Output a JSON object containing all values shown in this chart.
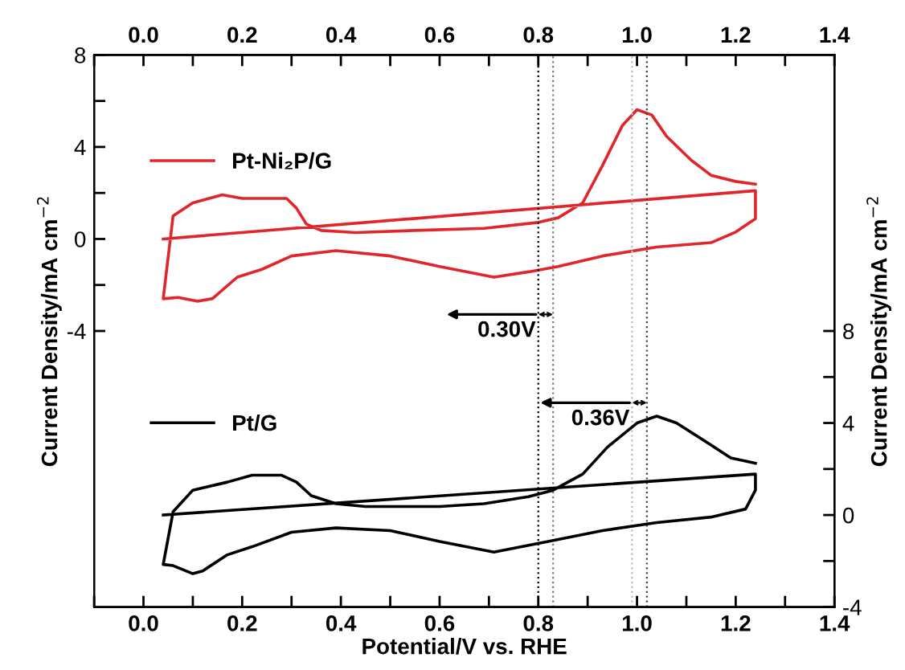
{
  "chart_data": {
    "type": "line",
    "xlabel": "Potential/V vs. RHE",
    "ylabel": "Current Density/mA cm$^{−2}$",
    "y2label": "Current Density/mA cm$^{−2}$",
    "xlim": [
      -0.1,
      1.4
    ],
    "xticks": [
      {
        "value": -0.1,
        "label": null
      },
      "0.0",
      {
        "value": 0.1,
        "label": null
      },
      {
        "value": 0.2,
        "label": "0.2"
      },
      {
        "value": 0.3,
        "label": null
      },
      {
        "value": 0.4,
        "label": "0.4"
      },
      {
        "value": 0.5,
        "label": null
      },
      {
        "value": 0.6,
        "label": "0.6"
      },
      {
        "value": 0.7,
        "label": null
      },
      {
        "value": 0.8,
        "label": "0.8"
      },
      {
        "value": 0.9,
        "label": null
      },
      {
        "value": 1.0,
        "label": "1.0"
      },
      {
        "value": 1.1,
        "label": null
      },
      {
        "value": 1.2,
        "label": "1.2"
      },
      {
        "value": 1.3,
        "label": null
      },
      {
        "value": 1.4,
        "label": "1.4"
      }
    ],
    "x2lim": [
      -0.1,
      1.4
    ],
    "x2ticks": [
      {
        "value": -0.1,
        "label": null
      },
      {
        "value": 0.0,
        "label": "0.0"
      },
      {
        "value": 0.1,
        "label": null
      },
      {
        "value": 0.2,
        "label": "0.2"
      },
      {
        "value": 0.3,
        "label": null
      },
      {
        "value": 0.4,
        "label": "0.4"
      },
      {
        "value": 0.5,
        "label": null
      },
      {
        "value": 0.6,
        "label": "0.6"
      },
      {
        "value": 0.7,
        "label": null
      },
      {
        "value": 0.8,
        "label": "0.8"
      },
      {
        "value": 0.9,
        "label": null
      },
      {
        "value": 1.0,
        "label": "1.0"
      },
      {
        "value": 1.1,
        "label": null
      },
      {
        "value": 1.2,
        "label": "1.2"
      },
      {
        "value": 1.3,
        "label": null
      },
      {
        "value": 1.4,
        "label": "1.4"
      }
    ],
    "ylim": [
      -16,
      8
    ],
    "yticks": [
      -4,
      {
        "value": -2,
        "label": null
      },
      0,
      {
        "value": 2,
        "label": null
      },
      4,
      {
        "value": 6,
        "label": null
      },
      8
    ],
    "y2lim": [
      -4,
      20
    ],
    "y2ticks": [
      -4,
      {
        "value": -2,
        "label": null
      },
      0,
      {
        "value": 2,
        "label": null
      },
      4,
      {
        "value": 6,
        "label": null
      },
      8
    ],
    "grid": false,
    "legend": "left",
    "line_style": "solid",
    "marker": "none",
    "series": [
      {
        "name": "Pt-Ni₂P/G",
        "color": "#e0262b",
        "axis": "y",
        "x": [
          0.04,
          1.24,
          1.24,
          1.24,
          1.2,
          1.15,
          1.04,
          0.93,
          0.84,
          0.78,
          0.71,
          0.6,
          0.5,
          0.39,
          0.3,
          0.24,
          0.19,
          0.14,
          0.11,
          0.07,
          0.04,
          0.06,
          0.1,
          0.16,
          0.2,
          0.29,
          0.31,
          0.33,
          0.36,
          0.43,
          0.55,
          0.69,
          0.8,
          0.84,
          0.89,
          0.93,
          0.97,
          1.0,
          1.03,
          1.06,
          1.11,
          1.15,
          1.2,
          1.24
        ],
        "values": [
          0.0,
          2.1,
          1.57,
          0.88,
          0.3,
          -0.16,
          -0.35,
          -0.74,
          -1.2,
          -1.43,
          -1.66,
          -1.2,
          -0.74,
          -0.51,
          -0.74,
          -1.32,
          -1.66,
          -2.59,
          -2.71,
          -2.54,
          -2.6,
          1.0,
          1.57,
          1.92,
          1.76,
          1.76,
          1.34,
          0.65,
          0.37,
          0.28,
          0.37,
          0.46,
          0.72,
          0.92,
          1.57,
          3.19,
          4.92,
          5.62,
          5.39,
          4.46,
          3.42,
          2.77,
          2.5,
          2.38
        ]
      },
      {
        "name": "Pt/G",
        "color": "#000000",
        "axis": "y2",
        "x": [
          0.04,
          1.24,
          1.24,
          1.22,
          1.15,
          1.04,
          0.93,
          0.82,
          0.71,
          0.6,
          0.5,
          0.39,
          0.3,
          0.22,
          0.17,
          0.12,
          0.1,
          0.06,
          0.04,
          0.06,
          0.1,
          0.17,
          0.22,
          0.28,
          0.31,
          0.34,
          0.39,
          0.45,
          0.6,
          0.69,
          0.78,
          0.83,
          0.89,
          0.94,
          1.0,
          1.04,
          1.08,
          1.14,
          1.19,
          1.24
        ],
        "values": [
          0.0,
          1.78,
          1.08,
          0.26,
          -0.09,
          -0.33,
          -0.68,
          -1.15,
          -1.61,
          -1.15,
          -0.68,
          -0.56,
          -0.75,
          -1.38,
          -1.73,
          -2.43,
          -2.55,
          -2.2,
          -2.15,
          0.14,
          1.08,
          1.43,
          1.73,
          1.73,
          1.43,
          0.84,
          0.49,
          0.37,
          0.37,
          0.49,
          0.8,
          1.08,
          1.78,
          2.95,
          4.0,
          4.3,
          4.0,
          3.18,
          2.48,
          2.25
        ]
      }
    ],
    "ref_lines": [
      {
        "axis": "x",
        "value": 0.8,
        "label": null,
        "color": "#000000",
        "line_style": "dotted"
      },
      {
        "axis": "x",
        "value": 0.83,
        "label": null,
        "color": "#777777",
        "line_style": "dotted"
      },
      {
        "axis": "x",
        "value": 0.99,
        "label": null,
        "color": "#bbbbbb",
        "line_style": "dotted"
      },
      {
        "axis": "x",
        "value": 1.02,
        "label": null,
        "color": "#444444",
        "line_style": "dotted"
      }
    ],
    "annotations": [
      "0.30V",
      "0.36V"
    ]
  }
}
